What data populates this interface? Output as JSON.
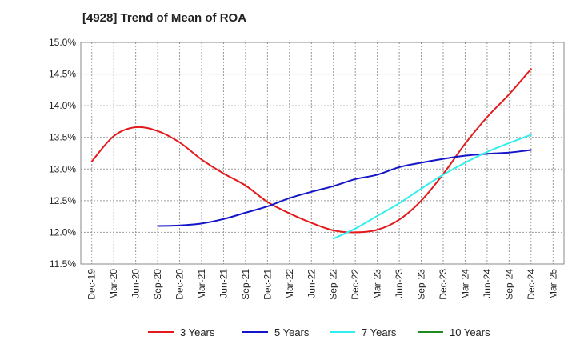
{
  "chart_data": {
    "type": "line",
    "title": "[4928]  Trend of Mean of ROA",
    "xlabel": "",
    "ylabel": "",
    "x": [
      "Dec-19",
      "Mar-20",
      "Jun-20",
      "Sep-20",
      "Dec-20",
      "Mar-21",
      "Jun-21",
      "Sep-21",
      "Dec-21",
      "Mar-22",
      "Jun-22",
      "Sep-22",
      "Dec-22",
      "Mar-23",
      "Jun-23",
      "Sep-23",
      "Dec-23",
      "Mar-24",
      "Jun-24",
      "Sep-24",
      "Dec-24",
      "Mar-25"
    ],
    "ylim": [
      11.5,
      15.0
    ],
    "yticks": [
      "11.5%",
      "12.0%",
      "12.5%",
      "13.0%",
      "13.5%",
      "14.0%",
      "14.5%",
      "15.0%"
    ],
    "grid": true,
    "legend_position": "bottom",
    "series": [
      {
        "name": "3 Years",
        "color": "#e31a1c",
        "values": [
          13.12,
          13.52,
          13.66,
          13.6,
          13.42,
          13.15,
          12.93,
          12.74,
          12.48,
          12.3,
          12.15,
          12.03,
          12.0,
          12.04,
          12.2,
          12.5,
          12.92,
          13.4,
          13.82,
          14.18,
          14.58,
          null
        ]
      },
      {
        "name": "5 Years",
        "color": "#1414c8",
        "values": [
          null,
          null,
          null,
          12.1,
          12.11,
          12.14,
          12.21,
          12.31,
          12.41,
          12.54,
          12.64,
          12.73,
          12.84,
          12.91,
          13.03,
          13.1,
          13.16,
          13.21,
          13.24,
          13.26,
          13.3,
          null
        ]
      },
      {
        "name": "7 Years",
        "color": "#33eeee",
        "values": [
          null,
          null,
          null,
          null,
          null,
          null,
          null,
          null,
          null,
          null,
          null,
          11.9,
          12.06,
          12.26,
          12.46,
          12.69,
          12.91,
          13.1,
          13.27,
          13.41,
          13.54,
          null
        ]
      },
      {
        "name": "10 Years",
        "color": "#1f8a1f",
        "values": [
          null,
          null,
          null,
          null,
          null,
          null,
          null,
          null,
          null,
          null,
          null,
          null,
          null,
          null,
          null,
          null,
          null,
          null,
          null,
          null,
          null,
          null
        ]
      }
    ]
  }
}
